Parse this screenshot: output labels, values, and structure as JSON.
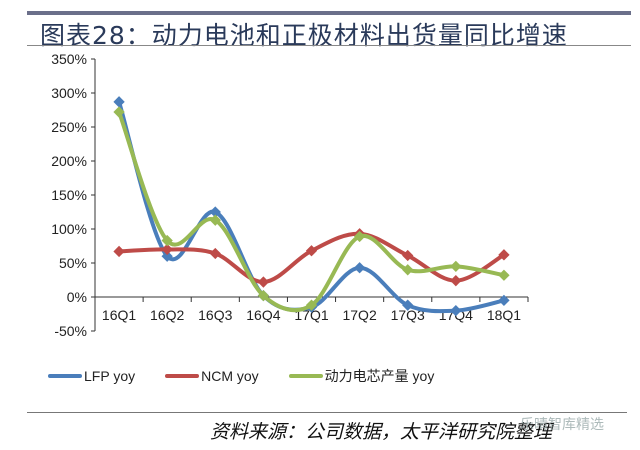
{
  "title": "图表28：动力电池和正极材料出货量同比增速",
  "source": "资料来源：公司数据，太平洋研究院整理",
  "watermark": "乐晴智库精选",
  "chart_data": {
    "type": "line",
    "title": "",
    "xlabel": "",
    "ylabel": "",
    "categories": [
      "16Q1",
      "16Q2",
      "16Q3",
      "16Q4",
      "17Q1",
      "17Q2",
      "17Q3",
      "17Q4",
      "18Q1"
    ],
    "ylim": [
      -50,
      350
    ],
    "yticks": [
      "-50%",
      "0%",
      "50%",
      "100%",
      "150%",
      "200%",
      "250%",
      "300%",
      "350%"
    ],
    "ytick_values": [
      -50,
      0,
      50,
      100,
      150,
      200,
      250,
      300,
      350
    ],
    "grid": false,
    "smooth": true,
    "legend_position": "bottom",
    "series": [
      {
        "name": "LFP yoy",
        "color": "#4a7ebb",
        "values": [
          287,
          60,
          125,
          2,
          -15,
          43,
          -12,
          -20,
          -5
        ]
      },
      {
        "name": "NCM yoy",
        "color": "#be4b48",
        "values": [
          67,
          70,
          64,
          22,
          68,
          93,
          61,
          24,
          62
        ]
      },
      {
        "name": "动力电芯产量 yoy",
        "color": "#98b954",
        "values": [
          272,
          83,
          113,
          2,
          -12,
          89,
          40,
          45,
          32
        ]
      }
    ]
  }
}
